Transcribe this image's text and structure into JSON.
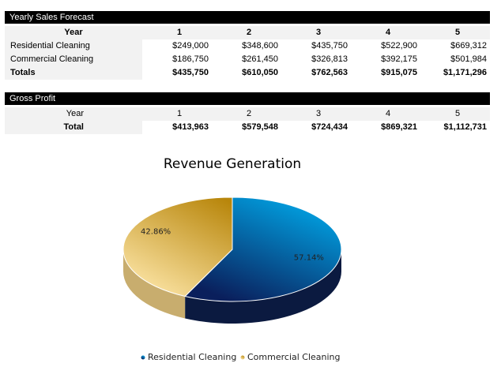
{
  "sales_forecast": {
    "title": "Yearly Sales Forecast",
    "header": [
      "Year",
      "1",
      "2",
      "3",
      "4",
      "5"
    ],
    "rows": [
      [
        "Residential Cleaning",
        "$249,000",
        "$348,600",
        "$435,750",
        "$522,900",
        "$669,312"
      ],
      [
        "Commercial Cleaning",
        "$186,750",
        "$261,450",
        "$326,813",
        "$392,175",
        "$501,984"
      ]
    ],
    "totals": [
      "Totals",
      "$435,750",
      "$610,050",
      "$762,563",
      "$915,075",
      "$1,171,296"
    ]
  },
  "gross_profit": {
    "title": "Gross Profit",
    "header": [
      "Year",
      "1",
      "2",
      "3",
      "4",
      "5"
    ],
    "rows": [],
    "totals": [
      "Total",
      "$413,963",
      "$579,548",
      "$724,434",
      "$869,321",
      "$1,112,731"
    ]
  },
  "chart_data": {
    "type": "pie",
    "title": "Revenue Generation",
    "categories": [
      "Residential Cleaning",
      "Commercial Cleaning"
    ],
    "values": [
      57.14,
      42.86
    ],
    "value_labels": [
      "57.14%",
      "42.86%"
    ],
    "colors": [
      [
        "#00aeef",
        "#0a1f5c",
        "#0b1a40"
      ],
      [
        "#b8860b",
        "#fbe3a3",
        "#c8ad6e"
      ]
    ]
  }
}
